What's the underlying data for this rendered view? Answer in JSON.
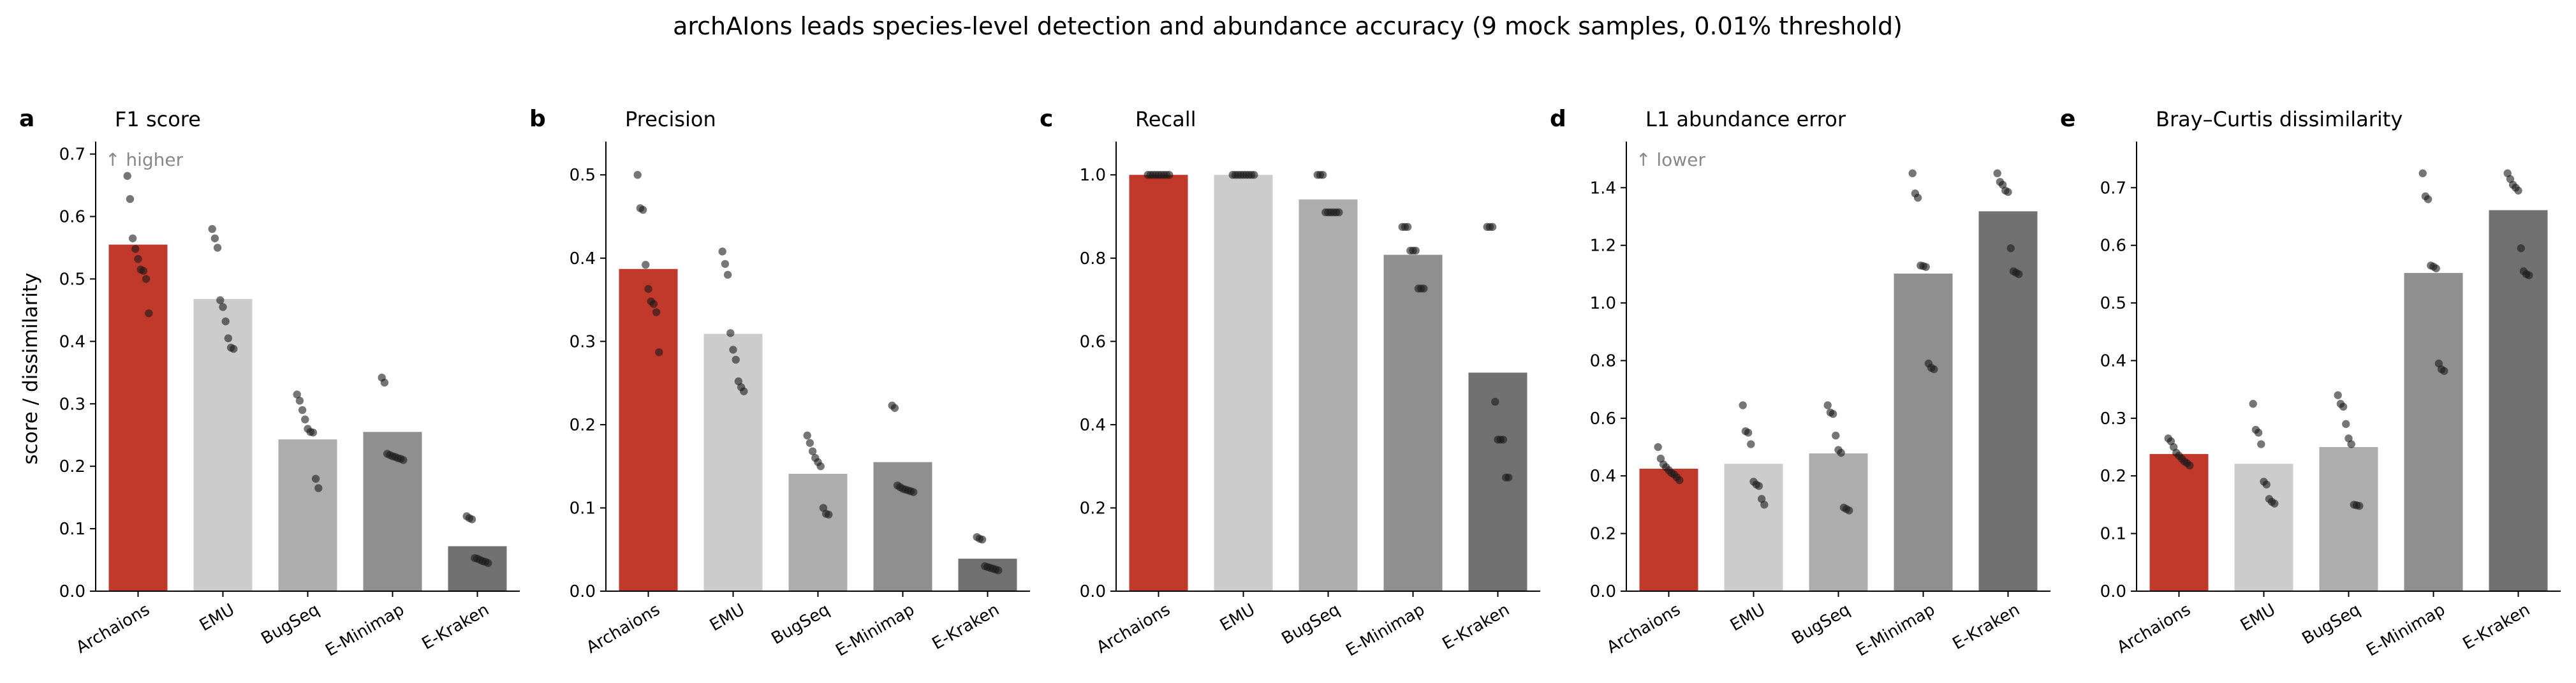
{
  "figure": {
    "title": "archAIons leads species-level detection and abundance accuracy (9 mock samples, 0.01% threshold)",
    "ylabel": "score / dissimilarity"
  },
  "colors": {
    "bars": [
      "#c0392b",
      "#cccccc",
      "#adadad",
      "#8f8f8f",
      "#717171"
    ],
    "dots": "#1a1a1a",
    "axis": "#000000",
    "hint": "#888888"
  },
  "chart_data": [
    {
      "type": "bar",
      "panel": "a",
      "title": "F1 score",
      "annotation": "↑ higher",
      "categories": [
        "Archaions",
        "EMU",
        "BugSeq",
        "E-Minimap",
        "E-Kraken"
      ],
      "values": [
        0.555,
        0.468,
        0.243,
        0.255,
        0.072
      ],
      "points": [
        [
          0.665,
          0.628,
          0.565,
          0.548,
          0.532,
          0.515,
          0.513,
          0.5,
          0.445
        ],
        [
          0.58,
          0.565,
          0.55,
          0.466,
          0.455,
          0.432,
          0.405,
          0.39,
          0.388
        ],
        [
          0.315,
          0.305,
          0.29,
          0.275,
          0.26,
          0.255,
          0.254,
          0.18,
          0.165
        ],
        [
          0.342,
          0.334,
          0.22,
          0.218,
          0.216,
          0.215,
          0.213,
          0.212,
          0.21
        ],
        [
          0.12,
          0.117,
          0.115,
          0.053,
          0.052,
          0.05,
          0.048,
          0.047,
          0.045
        ]
      ],
      "yticks": [
        "0.0",
        "0.1",
        "0.2",
        "0.3",
        "0.4",
        "0.5",
        "0.6",
        "0.7"
      ],
      "ylim": [
        0,
        0.72
      ]
    },
    {
      "type": "bar",
      "panel": "b",
      "title": "Precision",
      "annotation": "",
      "categories": [
        "Archaions",
        "EMU",
        "BugSeq",
        "E-Minimap",
        "E-Kraken"
      ],
      "values": [
        0.387,
        0.309,
        0.141,
        0.155,
        0.039
      ],
      "points": [
        [
          0.5,
          0.46,
          0.458,
          0.392,
          0.363,
          0.348,
          0.345,
          0.335,
          0.287
        ],
        [
          0.408,
          0.393,
          0.38,
          0.31,
          0.29,
          0.278,
          0.252,
          0.245,
          0.24
        ],
        [
          0.187,
          0.178,
          0.168,
          0.16,
          0.155,
          0.15,
          0.1,
          0.093,
          0.092
        ],
        [
          0.223,
          0.22,
          0.127,
          0.125,
          0.123,
          0.122,
          0.121,
          0.12,
          0.119
        ],
        [
          0.065,
          0.063,
          0.062,
          0.03,
          0.029,
          0.028,
          0.027,
          0.026,
          0.025
        ]
      ],
      "yticks": [
        "0.0",
        "0.1",
        "0.2",
        "0.3",
        "0.4",
        "0.5"
      ],
      "ylim": [
        0,
        0.54
      ]
    },
    {
      "type": "bar",
      "panel": "c",
      "title": "Recall",
      "annotation": "",
      "categories": [
        "Archaions",
        "EMU",
        "BugSeq",
        "E-Minimap",
        "E-Kraken"
      ],
      "values": [
        1.0,
        1.0,
        0.941,
        0.808,
        0.525
      ],
      "points": [
        [
          1.0,
          1.0,
          1.0,
          1.0,
          1.0,
          1.0,
          1.0,
          1.0,
          1.0
        ],
        [
          1.0,
          1.0,
          1.0,
          1.0,
          1.0,
          1.0,
          1.0,
          1.0,
          1.0
        ],
        [
          1.0,
          1.0,
          1.0,
          0.91,
          0.91,
          0.91,
          0.91,
          0.91,
          0.91
        ],
        [
          0.875,
          0.875,
          0.875,
          0.818,
          0.818,
          0.818,
          0.727,
          0.727,
          0.727
        ],
        [
          0.875,
          0.875,
          0.875,
          0.455,
          0.364,
          0.364,
          0.364,
          0.273,
          0.273
        ]
      ],
      "yticks": [
        "0.0",
        "0.2",
        "0.4",
        "0.6",
        "0.8",
        "1.0"
      ],
      "ylim": [
        0,
        1.08
      ]
    },
    {
      "type": "bar",
      "panel": "d",
      "title": "L1 abundance error",
      "annotation": "↑ lower",
      "categories": [
        "Archaions",
        "EMU",
        "BugSeq",
        "E-Minimap",
        "E-Kraken"
      ],
      "values": [
        0.425,
        0.442,
        0.478,
        1.102,
        1.318
      ],
      "points": [
        [
          0.5,
          0.46,
          0.44,
          0.43,
          0.42,
          0.41,
          0.405,
          0.395,
          0.385
        ],
        [
          0.645,
          0.555,
          0.55,
          0.51,
          0.38,
          0.37,
          0.365,
          0.32,
          0.3
        ],
        [
          0.645,
          0.62,
          0.615,
          0.54,
          0.49,
          0.48,
          0.29,
          0.285,
          0.28
        ],
        [
          1.45,
          1.38,
          1.365,
          1.13,
          1.128,
          1.125,
          0.79,
          0.775,
          0.77
        ],
        [
          1.45,
          1.42,
          1.41,
          1.39,
          1.385,
          1.19,
          1.11,
          1.105,
          1.1
        ]
      ],
      "yticks": [
        "0.0",
        "0.2",
        "0.4",
        "0.6",
        "0.8",
        "1.0",
        "1.2",
        "1.4"
      ],
      "ylim": [
        0,
        1.56
      ]
    },
    {
      "type": "bar",
      "panel": "e",
      "title": "Bray–Curtis dissimilarity",
      "annotation": "",
      "categories": [
        "Archaions",
        "EMU",
        "BugSeq",
        "E-Minimap",
        "E-Kraken"
      ],
      "values": [
        0.238,
        0.221,
        0.25,
        0.552,
        0.661
      ],
      "points": [
        [
          0.265,
          0.26,
          0.25,
          0.24,
          0.235,
          0.23,
          0.225,
          0.222,
          0.218
        ],
        [
          0.325,
          0.28,
          0.275,
          0.255,
          0.19,
          0.185,
          0.16,
          0.155,
          0.152
        ],
        [
          0.34,
          0.325,
          0.32,
          0.29,
          0.265,
          0.255,
          0.15,
          0.149,
          0.148
        ],
        [
          0.725,
          0.685,
          0.68,
          0.565,
          0.563,
          0.56,
          0.395,
          0.385,
          0.382
        ],
        [
          0.725,
          0.715,
          0.705,
          0.7,
          0.695,
          0.595,
          0.555,
          0.55,
          0.548
        ]
      ],
      "yticks": [
        "0.0",
        "0.1",
        "0.2",
        "0.3",
        "0.4",
        "0.5",
        "0.6",
        "0.7"
      ],
      "ylim": [
        0,
        0.78
      ]
    }
  ]
}
